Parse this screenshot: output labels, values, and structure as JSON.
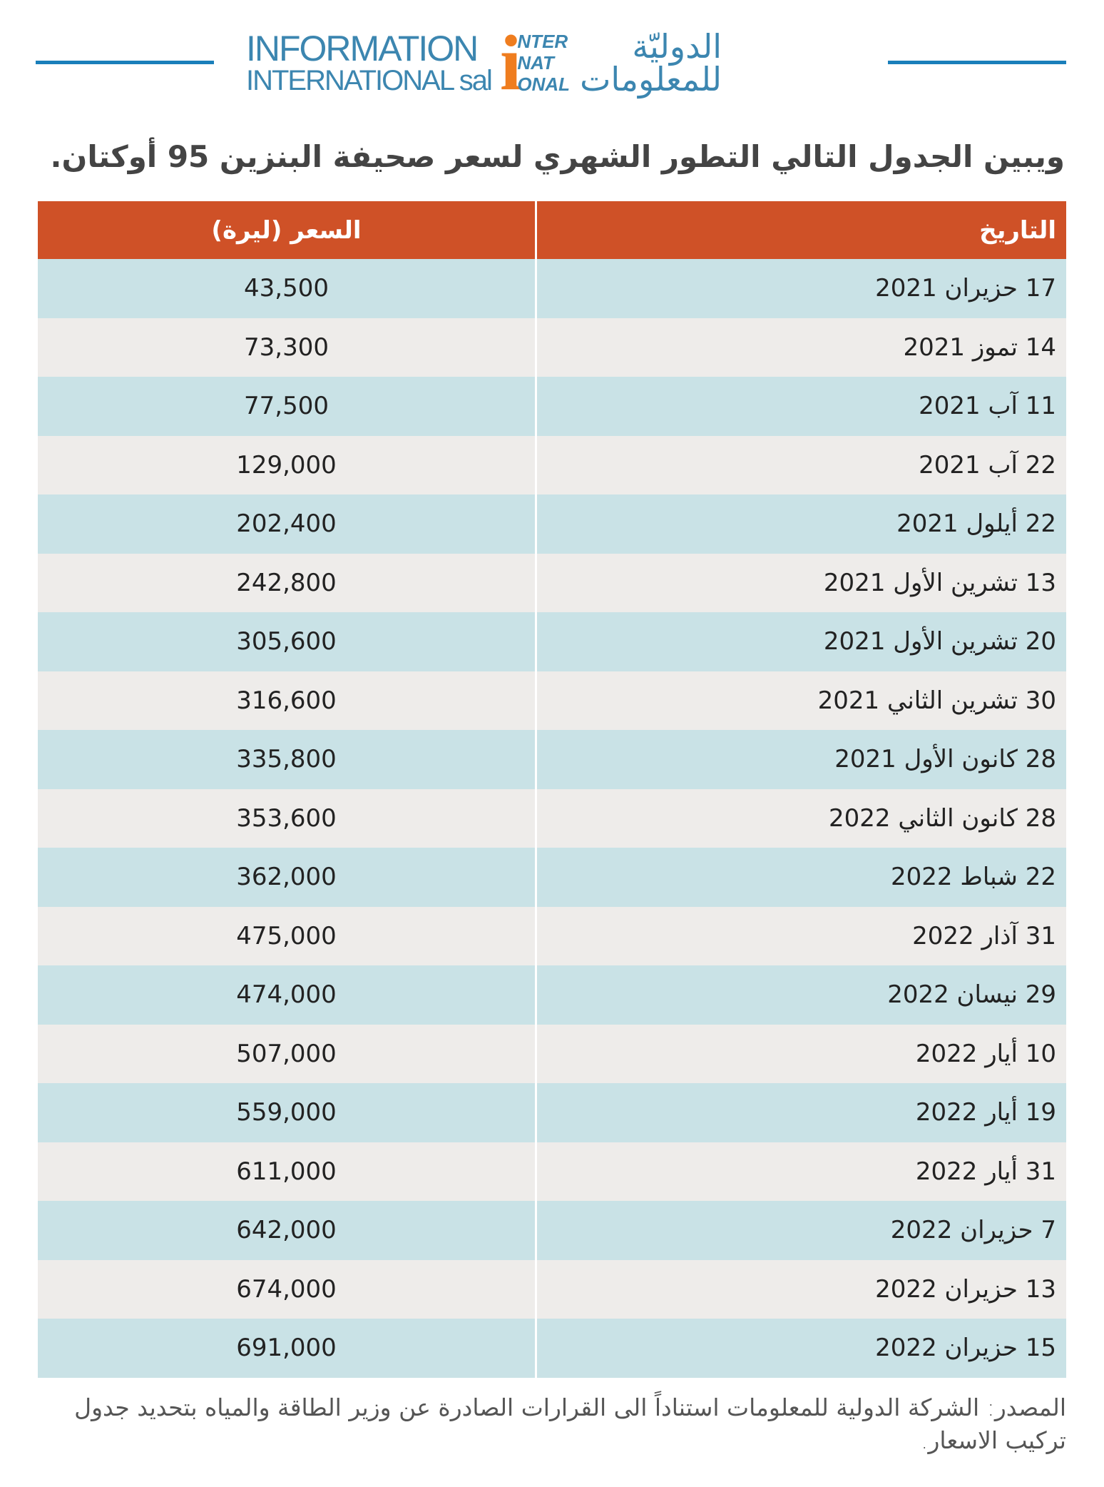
{
  "logo": {
    "en_line1": "INFORMATION",
    "en_line2": "INTERNATIONAL sal",
    "mark_letter": "i",
    "mark_text": [
      "NTER",
      "NAT",
      "ONAL"
    ],
    "ar_line1": "الدوليّة",
    "ar_line2": "للمعلومات"
  },
  "title": "ويبين الجدول التالي التطور الشهري لسعر صحيفة البنزين 95 أوكتان.",
  "table": {
    "headers": {
      "date": "التاريخ",
      "price": "السعر (ليرة)"
    },
    "rows": [
      {
        "date": "17 حزيران 2021",
        "price": "43,500"
      },
      {
        "date": "14 تموز 2021",
        "price": "73,300"
      },
      {
        "date": "11 آب 2021",
        "price": "77,500"
      },
      {
        "date": "22 آب 2021",
        "price": "129,000"
      },
      {
        "date": "22 أيلول 2021",
        "price": "202,400"
      },
      {
        "date": "13 تشرين الأول 2021",
        "price": "242,800"
      },
      {
        "date": "20 تشرين الأول 2021",
        "price": "305,600"
      },
      {
        "date": "30 تشرين الثاني 2021",
        "price": "316,600"
      },
      {
        "date": "28 كانون الأول 2021",
        "price": "335,800"
      },
      {
        "date": "28 كانون الثاني 2022",
        "price": "353,600"
      },
      {
        "date": "22 شباط 2022",
        "price": "362,000"
      },
      {
        "date": "31 آذار 2022",
        "price": "475,000"
      },
      {
        "date": "29 نيسان 2022",
        "price": "474,000"
      },
      {
        "date": "10 أيار 2022",
        "price": "507,000"
      },
      {
        "date": "19 أيار 2022",
        "price": "559,000"
      },
      {
        "date": "31 أيار 2022",
        "price": "611,000"
      },
      {
        "date": "7 حزيران 2022",
        "price": "642,000"
      },
      {
        "date": "13 حزيران 2022",
        "price": "674,000"
      },
      {
        "date": "15 حزيران 2022",
        "price": "691,000"
      }
    ]
  },
  "source": "المصدر: الشركة الدولية للمعلومات استناداً الى القرارات الصادرة عن وزير الطاقة والمياه بتحديد جدول تركيب الاسعار.",
  "colors": {
    "header": "#cf5127",
    "row_blue": "#c9e2e6",
    "row_gray": "#eeecea",
    "brand_blue": "#3c86b0",
    "brand_orange": "#ef7d1f"
  }
}
